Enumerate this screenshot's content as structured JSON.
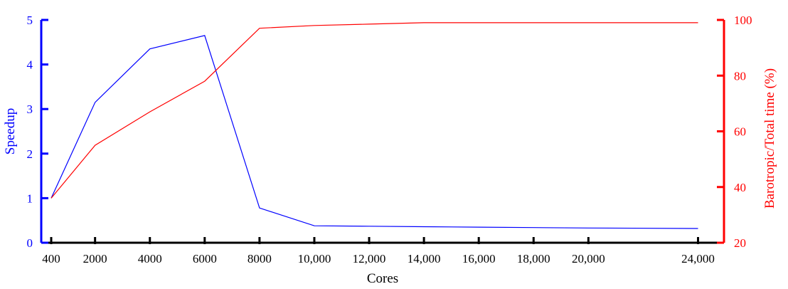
{
  "chart_data": {
    "type": "line",
    "xlabel": "Cores",
    "x": [
      400,
      2000,
      4000,
      6000,
      8000,
      10000,
      12000,
      14000,
      16000,
      18000,
      20000,
      24000
    ],
    "x_tick_labels": [
      "400",
      "2000",
      "4000",
      "6000",
      "8000",
      "10,000",
      "12,000",
      "14,000",
      "16,000",
      "18,000",
      "20,000",
      "24,000"
    ],
    "y_left": {
      "label": "Speedup",
      "lim": [
        0,
        5
      ],
      "ticks": [
        "0",
        "1",
        "2",
        "3",
        "4",
        "5"
      ],
      "color": "#0000ff"
    },
    "y_right": {
      "label": "Barotropic/Total time (%)",
      "lim": [
        20,
        100
      ],
      "ticks": [
        "20",
        "40",
        "60",
        "80",
        "100"
      ],
      "color": "#ff0000"
    },
    "grid": false,
    "series": [
      {
        "axis": "left",
        "color": "#0000ff",
        "values": [
          1.0,
          3.15,
          4.35,
          4.65,
          0.78,
          0.38,
          0.37,
          0.36,
          0.35,
          0.34,
          0.33,
          0.32
        ]
      },
      {
        "axis": "right",
        "color": "#ff0000",
        "values": [
          36,
          55,
          67,
          78,
          97,
          98,
          98.5,
          99,
          99,
          99,
          99,
          99
        ]
      }
    ]
  }
}
